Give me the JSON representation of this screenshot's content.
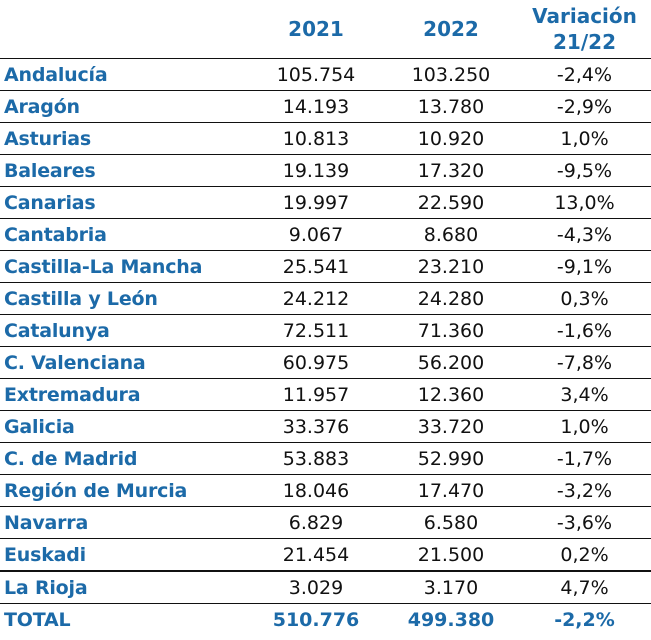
{
  "header": {
    "col_2021": "2021",
    "col_2022": "2022",
    "col_var_line1": "Variación",
    "col_var_line2": "21/22"
  },
  "rows": [
    {
      "region": "Andalucía",
      "y2021": "105.754",
      "y2022": "103.250",
      "var": "-2,4%"
    },
    {
      "region": "Aragón",
      "y2021": "14.193",
      "y2022": "13.780",
      "var": "-2,9%"
    },
    {
      "region": "Asturias",
      "y2021": "10.813",
      "y2022": "10.920",
      "var": "1,0%"
    },
    {
      "region": "Baleares",
      "y2021": "19.139",
      "y2022": "17.320",
      "var": "-9,5%"
    },
    {
      "region": "Canarias",
      "y2021": "19.997",
      "y2022": "22.590",
      "var": "13,0%"
    },
    {
      "region": "Cantabria",
      "y2021": "9.067",
      "y2022": "8.680",
      "var": "-4,3%"
    },
    {
      "region": "Castilla-La Mancha",
      "y2021": "25.541",
      "y2022": "23.210",
      "var": "-9,1%"
    },
    {
      "region": "Castilla y León",
      "y2021": "24.212",
      "y2022": "24.280",
      "var": "0,3%"
    },
    {
      "region": "Catalunya",
      "y2021": "72.511",
      "y2022": "71.360",
      "var": "-1,6%"
    },
    {
      "region": "C. Valenciana",
      "y2021": "60.975",
      "y2022": "56.200",
      "var": "-7,8%"
    },
    {
      "region": "Extremadura",
      "y2021": "11.957",
      "y2022": "12.360",
      "var": "3,4%"
    },
    {
      "region": "Galicia",
      "y2021": "33.376",
      "y2022": "33.720",
      "var": "1,0%"
    },
    {
      "region": "C. de Madrid",
      "y2021": "53.883",
      "y2022": "52.990",
      "var": "-1,7%"
    },
    {
      "region": "Región de Murcia",
      "y2021": "18.046",
      "y2022": "17.470",
      "var": "-3,2%"
    },
    {
      "region": "Navarra",
      "y2021": "6.829",
      "y2022": "6.580",
      "var": "-3,6%"
    },
    {
      "region": "Euskadi",
      "y2021": "21.454",
      "y2022": "21.500",
      "var": "0,2%"
    },
    {
      "region": "La Rioja",
      "y2021": "3.029",
      "y2022": "3.170",
      "var": "4,7%"
    }
  ],
  "total": {
    "label": "TOTAL",
    "y2021": "510.776",
    "y2022": "499.380",
    "var": "-2,2%"
  },
  "colors": {
    "accent": "#1c6aa8",
    "text": "#111111"
  }
}
